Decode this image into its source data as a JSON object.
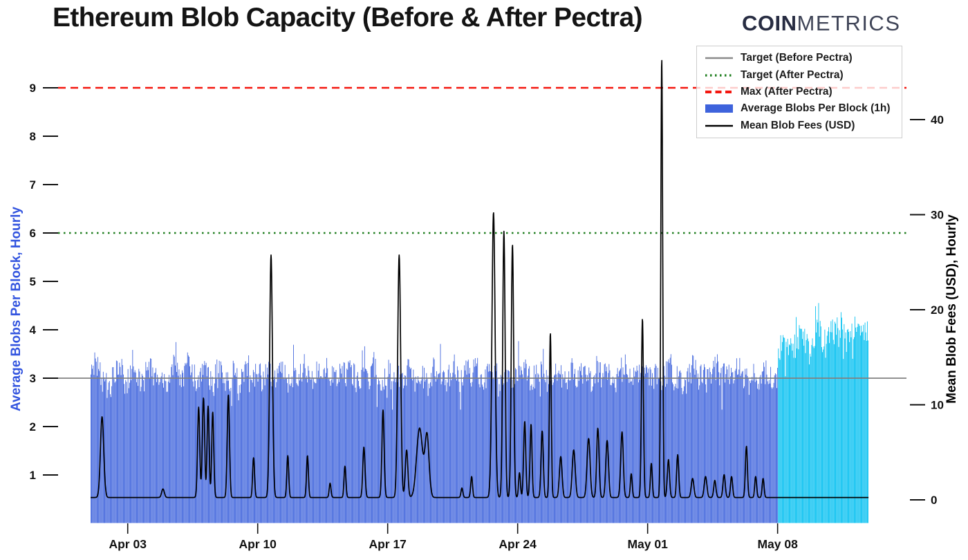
{
  "header": {
    "title": "Ethereum Blob Capacity (Before & After Pectra)",
    "logo": {
      "bold": "COIN",
      "light": "METRICS"
    }
  },
  "legend": {
    "items": [
      {
        "label": "Target (Before Pectra)",
        "swatch": "line",
        "color": "#8a8a8a"
      },
      {
        "label": "Target (After Pectra)",
        "swatch": "dotted",
        "color": "#1e7d1e"
      },
      {
        "label": "Max (After Pectra)",
        "swatch": "dashed",
        "color": "#f3170f"
      },
      {
        "label": "Average Blobs Per Block (1h)",
        "swatch": "rect",
        "color": "#3E63DC"
      },
      {
        "label": "Mean Blob Fees (USD)",
        "swatch": "line",
        "color": "#000000"
      }
    ]
  },
  "chart_data": {
    "type": "bar+line-dual-axis",
    "title": "Ethereum Blob Capacity (Before & After Pectra)",
    "left_axis": {
      "label": "Average Blobs Per Block, Hourly",
      "color": "#3254df",
      "ticks": [
        1,
        2,
        3,
        4,
        5,
        6,
        7,
        8,
        9
      ],
      "ylim": [
        0,
        9.9
      ]
    },
    "right_axis": {
      "label": "Mean Blob Fees (USD), Hourly",
      "color": "#000000",
      "ticks": [
        0,
        10,
        20,
        30,
        40
      ],
      "ylim": [
        -2.4,
        47.9
      ]
    },
    "x_axis": {
      "span_days": 41.9,
      "ticks": [
        {
          "label": "Apr 03",
          "day": 2
        },
        {
          "label": "Apr 10",
          "day": 9
        },
        {
          "label": "Apr 17",
          "day": 16
        },
        {
          "label": "Apr 24",
          "day": 23
        },
        {
          "label": "May 01",
          "day": 30
        },
        {
          "label": "May 08",
          "day": 37
        }
      ]
    },
    "reference_lines": [
      {
        "name": "Target (Before Pectra)",
        "value": 3,
        "color": "#808080",
        "style": "solid",
        "width": 1.8
      },
      {
        "name": "Target (After Pectra)",
        "value": 6,
        "color": "#1e7d1e",
        "style": "dotted",
        "width": 2.6
      },
      {
        "name": "Max (After Pectra)",
        "value": 9,
        "color": "#f3170f",
        "style": "dashed",
        "width": 2.6
      }
    ],
    "blobs": {
      "name": "Average Blobs Per Block (1h)",
      "color_before": "#3E63DC",
      "color_after": "#00BFF0",
      "pectra_transition_day": 37.05,
      "samples_per_day": 4,
      "values": [
        3.2,
        3.35,
        3.1,
        2.9,
        2.75,
        3.05,
        3.3,
        3.15,
        2.9,
        3.2,
        3.05,
        2.8,
        3.1,
        3.3,
        2.95,
        3.15,
        2.85,
        3.0,
        3.25,
        3.1,
        2.95,
        3.35,
        3.1,
        2.9,
        3.05,
        3.2,
        2.85,
        3.1,
        3.25,
        3.0,
        2.9,
        3.15,
        2.8,
        3.1,
        3.3,
        3.0,
        3.15,
        2.95,
        3.2,
        3.05,
        2.9,
        3.25,
        3.0,
        2.75,
        3.1,
        2.95,
        3.3,
        3.1,
        2.85,
        3.15,
        3.0,
        3.2,
        3.05,
        2.9,
        3.25,
        3.0,
        3.2,
        3.0,
        2.85,
        3.1,
        2.95,
        3.3,
        3.05,
        2.9,
        3.15,
        3.0,
        3.2,
        2.95,
        3.05,
        3.25,
        2.9,
        3.1,
        3.0,
        2.85,
        3.2,
        3.05,
        3.1,
        2.95,
        3.3,
        3.0,
        2.9,
        3.15,
        3.05,
        3.25,
        3.0,
        2.9,
        3.1,
        3.2,
        2.95,
        3.05,
        3.3,
        2.85,
        3.1,
        3.0,
        3.2,
        2.95,
        3.05,
        3.25,
        2.9,
        3.1,
        3.0,
        3.15,
        2.85,
        3.05,
        3.2,
        2.95,
        3.1,
        3.0,
        2.9,
        3.2,
        3.05,
        3.15,
        3.0,
        2.85,
        3.25,
        3.1,
        2.95,
        3.1,
        3.0,
        3.2,
        3.05,
        2.9,
        3.15,
        3.0,
        3.1,
        3.25,
        2.95,
        3.05,
        2.85,
        3.1,
        3.2,
        3.0,
        3.15,
        2.9,
        3.05,
        3.25,
        3.0,
        3.1,
        2.95,
        3.15,
        3.2,
        3.0,
        2.9,
        3.1,
        2.75,
        3.05,
        3.15,
        3.0,
        3.45,
        3.7,
        3.55,
        3.8,
        3.6,
        3.95,
        3.75,
        3.5,
        3.85,
        4.1,
        3.7,
        3.9,
        4.0,
        3.8,
        4.2,
        3.75,
        3.9,
        4.15,
        3.85,
        4.0
      ]
    },
    "fees": {
      "name": "Mean Blob Fees (USD)",
      "color": "#000000",
      "baseline_usd": 0.25,
      "spikes": [
        [
          0.62,
          8.5,
          0.09
        ],
        [
          3.9,
          0.9,
          0.07
        ],
        [
          5.82,
          9.5,
          0.06
        ],
        [
          6.08,
          10.5,
          0.06
        ],
        [
          6.33,
          9.6,
          0.055
        ],
        [
          6.58,
          9.0,
          0.055
        ],
        [
          7.42,
          10.8,
          0.06
        ],
        [
          8.78,
          4.2,
          0.05
        ],
        [
          9.72,
          25.5,
          0.075
        ],
        [
          10.62,
          4.4,
          0.05
        ],
        [
          11.68,
          4.4,
          0.05
        ],
        [
          12.9,
          1.5,
          0.05
        ],
        [
          13.7,
          3.3,
          0.05
        ],
        [
          14.72,
          5.3,
          0.06
        ],
        [
          15.75,
          9.2,
          0.06
        ],
        [
          16.62,
          25.5,
          0.08
        ],
        [
          17.02,
          5.0,
          0.07
        ],
        [
          17.72,
          7.3,
          0.16
        ],
        [
          18.12,
          6.5,
          0.11
        ],
        [
          20.0,
          1.0,
          0.05
        ],
        [
          20.52,
          2.2,
          0.05
        ],
        [
          21.7,
          30.0,
          0.085
        ],
        [
          22.26,
          28.0,
          0.065
        ],
        [
          22.72,
          26.6,
          0.065
        ],
        [
          23.1,
          2.6,
          0.05
        ],
        [
          23.38,
          8.0,
          0.06
        ],
        [
          23.72,
          7.7,
          0.055
        ],
        [
          24.32,
          7.0,
          0.06
        ],
        [
          24.76,
          17.3,
          0.05
        ],
        [
          25.32,
          4.3,
          0.07
        ],
        [
          26.02,
          5.0,
          0.08
        ],
        [
          26.82,
          6.2,
          0.08
        ],
        [
          27.32,
          7.3,
          0.065
        ],
        [
          27.82,
          6.0,
          0.07
        ],
        [
          28.62,
          6.9,
          0.07
        ],
        [
          29.12,
          2.5,
          0.05
        ],
        [
          29.72,
          18.8,
          0.055
        ],
        [
          30.2,
          3.6,
          0.05
        ],
        [
          30.76,
          46.2,
          0.05
        ],
        [
          31.12,
          4.0,
          0.06
        ],
        [
          31.62,
          4.5,
          0.055
        ],
        [
          32.42,
          2.0,
          0.07
        ],
        [
          33.12,
          2.2,
          0.07
        ],
        [
          33.62,
          1.8,
          0.06
        ],
        [
          34.12,
          2.4,
          0.06
        ],
        [
          34.52,
          2.2,
          0.055
        ],
        [
          35.32,
          5.4,
          0.055
        ],
        [
          35.82,
          2.2,
          0.05
        ],
        [
          36.22,
          2.0,
          0.05
        ]
      ]
    }
  }
}
